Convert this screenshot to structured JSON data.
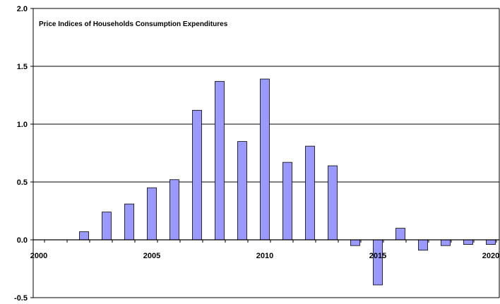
{
  "chart_data": {
    "type": "bar",
    "title": "Price Indices of Households Consumption Expenditures",
    "xlabel": "",
    "ylabel": "",
    "x": [
      2002,
      2003,
      2004,
      2005,
      2006,
      2007,
      2008,
      2009,
      2010,
      2011,
      2012,
      2013,
      2014,
      2015,
      2016,
      2017,
      2018,
      2019,
      2020
    ],
    "values": [
      0.07,
      0.24,
      0.31,
      0.45,
      0.52,
      1.12,
      1.37,
      0.85,
      1.39,
      0.67,
      0.81,
      0.64,
      -0.05,
      -0.39,
      0.1,
      -0.09,
      -0.05,
      -0.04,
      -0.04
    ],
    "xlim": [
      2000,
      2020
    ],
    "ylim": [
      -0.5,
      2.0
    ],
    "x_ticks": [
      2000,
      2005,
      2010,
      2015,
      2020
    ],
    "y_ticks": [
      "-0.5",
      "0.0",
      "0.5",
      "1.0",
      "1.5",
      "2.0"
    ],
    "grid": "horizontal",
    "bar_color": "#9999ff",
    "bar_edge_color": "#000000"
  }
}
